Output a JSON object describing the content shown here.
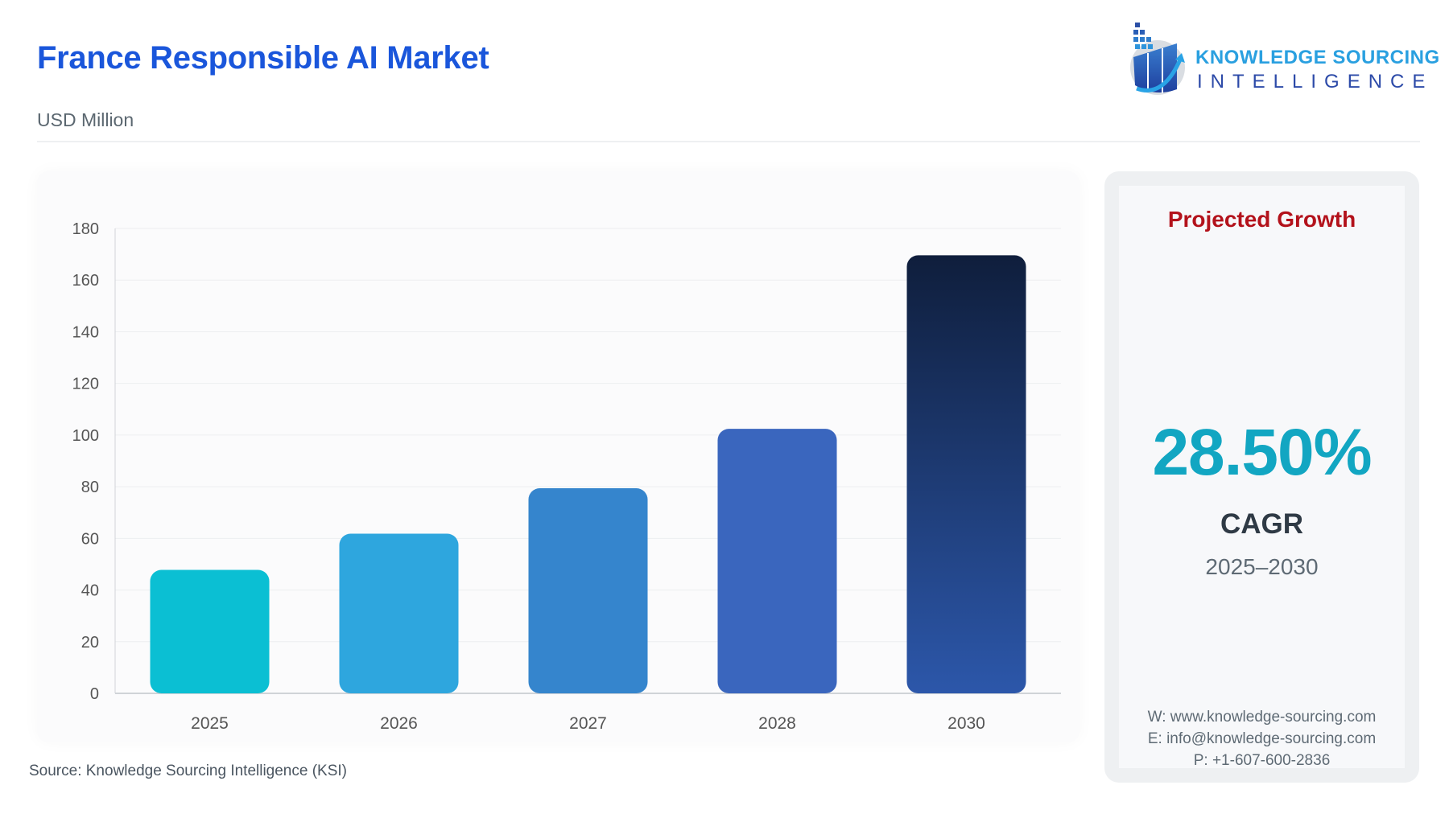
{
  "header": {
    "title": "France Responsible AI Market",
    "unit": "USD Million"
  },
  "logo": {
    "line1": "KNOWLEDGE SOURCING",
    "line2": "INTELLIGENCE"
  },
  "chart_data": {
    "type": "bar",
    "title": "France Responsible AI Market",
    "ylabel": "USD Million",
    "xlabel": "",
    "categories": [
      "2025",
      "2026",
      "2027",
      "2028",
      "2030"
    ],
    "values": [
      47.8,
      61.8,
      79.4,
      102.4,
      169.6
    ],
    "ylim": [
      0,
      180
    ],
    "yticks": [
      "0",
      "20",
      "40",
      "60",
      "80",
      "100",
      "120",
      "140",
      "160",
      "180"
    ],
    "grid": true,
    "legend": "none",
    "colors": [
      "#0bbfd3",
      "#2ea6de",
      "#3585cd",
      "#3a66be",
      "#1e3f7e"
    ]
  },
  "source": "Source: Knowledge Sourcing Intelligence (KSI)",
  "panel": {
    "heading": "Projected Growth",
    "cagr_value": "28.50%",
    "cagr_label": "CAGR",
    "period": "2025–2030",
    "website": "W: www.knowledge-sourcing.com",
    "email": "E: info@knowledge-sourcing.com",
    "phone": "P: +1-607-600-2836"
  }
}
